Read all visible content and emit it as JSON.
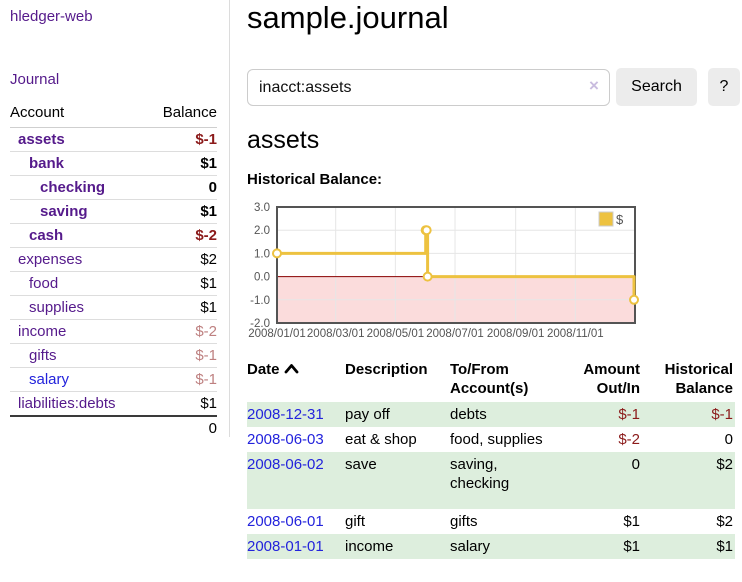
{
  "app": {
    "title": "hledger-web"
  },
  "colors": {
    "purple": "#551a8b",
    "blue": "#2323dc",
    "negative": "#8b1a1a",
    "negative_faded": "#be8080",
    "row_stripe": "#ddeedd",
    "chart_line": "#edc240",
    "chart_negative_region": "#fbdcdc",
    "chart_zero_line": "#8b0000",
    "chart_frame": "#545454",
    "chart_grid": "#e6e6e6"
  },
  "sidebar": {
    "nav": {
      "journal_label": "Journal"
    },
    "accounts_table": {
      "headers": {
        "account": "Account",
        "balance": "Balance"
      },
      "rows": [
        {
          "name": "assets",
          "balance": "$-1",
          "level": 0,
          "in_query": true,
          "neg": "strong"
        },
        {
          "name": "bank",
          "balance": "$1",
          "level": 1,
          "in_query": true,
          "neg": "none"
        },
        {
          "name": "checking",
          "balance": "0",
          "level": 2,
          "in_query": true,
          "neg": "none"
        },
        {
          "name": "saving",
          "balance": "$1",
          "level": 2,
          "in_query": true,
          "neg": "none"
        },
        {
          "name": "cash",
          "balance": "$-2",
          "level": 1,
          "in_query": true,
          "neg": "strong"
        },
        {
          "name": "expenses",
          "balance": "$2",
          "level": 0,
          "in_query": false,
          "neg": "none"
        },
        {
          "name": "food",
          "balance": "$1",
          "level": 1,
          "in_query": false,
          "neg": "none"
        },
        {
          "name": "supplies",
          "balance": "$1",
          "level": 1,
          "in_query": false,
          "neg": "none"
        },
        {
          "name": "income",
          "balance": "$-2",
          "level": 0,
          "in_query": false,
          "neg": "faded"
        },
        {
          "name": "gifts",
          "balance": "$-1",
          "level": 1,
          "in_query": false,
          "neg": "faded"
        },
        {
          "name": "salary",
          "balance": "$-1",
          "level": 1,
          "in_query": false,
          "neg": "faded",
          "link_state": "unvisited"
        },
        {
          "name": "liabilities:debts",
          "balance": "$1",
          "level": 0,
          "in_query": false,
          "neg": "none"
        }
      ],
      "total": "0"
    }
  },
  "main": {
    "title": "sample.journal",
    "search": {
      "query": "inacct:assets",
      "clear_label": "×",
      "button_label": "Search",
      "help_label": "?"
    },
    "account_heading": "assets",
    "chart_label": "Historical Balance:"
  },
  "chart_data": {
    "type": "line",
    "title": "Historical Balance",
    "step": true,
    "legend": {
      "position": "top-right",
      "label": "$"
    },
    "series": [
      {
        "name": "$",
        "points": [
          {
            "date": "2008-01-01",
            "value": 1
          },
          {
            "date": "2008-06-01",
            "value": 2
          },
          {
            "date": "2008-06-02",
            "value": 2
          },
          {
            "date": "2008-06-03",
            "value": 0
          },
          {
            "date": "2008-12-31",
            "value": -1
          }
        ]
      }
    ],
    "ylim": [
      -2,
      3
    ],
    "yticks": [
      3.0,
      2.0,
      1.0,
      0.0,
      -1.0,
      -2.0
    ],
    "xticks": [
      "2008/01/01",
      "2008/03/01",
      "2008/05/01",
      "2008/07/01",
      "2008/09/01",
      "2008/11/01"
    ],
    "xrange": [
      "2008-01-01",
      "2009-01-01"
    ],
    "grid": true,
    "negative_region_shaded": true
  },
  "register": {
    "headers": [
      {
        "label": "Date",
        "sortable": true,
        "align": "left"
      },
      {
        "label": "Description",
        "align": "left"
      },
      {
        "label": "To/From Account(s)",
        "align": "left"
      },
      {
        "label": "Amount Out/In",
        "align": "right"
      },
      {
        "label": "Historical Balance",
        "align": "right"
      }
    ],
    "rows": [
      {
        "date": "2008-12-31",
        "description": "pay off",
        "accounts_lines": [
          "debts"
        ],
        "amount": "$-1",
        "amount_neg": true,
        "balance": "$-1",
        "balance_neg": true
      },
      {
        "date": "2008-06-03",
        "description": "eat & shop",
        "accounts_lines": [
          "food, supplies"
        ],
        "amount": "$-2",
        "amount_neg": true,
        "balance": "0",
        "balance_neg": false
      },
      {
        "date": "2008-06-02",
        "description": "save",
        "accounts_lines": [
          "saving,",
          "checking"
        ],
        "amount": "0",
        "amount_neg": false,
        "balance": "$2",
        "balance_neg": false
      },
      {
        "date": "2008-06-01",
        "description": "gift",
        "accounts_lines": [
          "gifts"
        ],
        "amount": "$1",
        "amount_neg": false,
        "balance": "$2",
        "balance_neg": false
      },
      {
        "date": "2008-01-01",
        "description": "income",
        "accounts_lines": [
          "salary"
        ],
        "amount": "$1",
        "amount_neg": false,
        "balance": "$1",
        "balance_neg": false
      }
    ]
  }
}
